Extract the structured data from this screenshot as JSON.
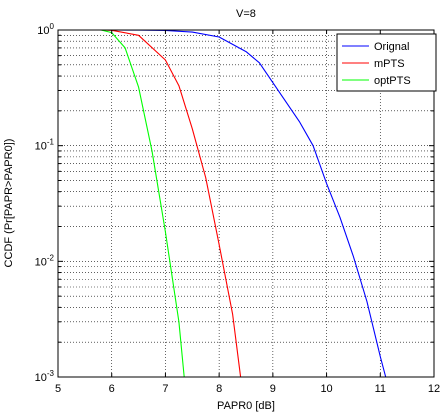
{
  "chart_data": {
    "type": "line",
    "title": "V=8",
    "xlabel": "PAPR0 [dB]",
    "ylabel": "CCDF (Pr[PAPR>PAPR0])",
    "xlim": [
      5,
      12
    ],
    "ylim": [
      0.001,
      1
    ],
    "yscale": "log",
    "x_ticks": [
      "5",
      "6",
      "7",
      "8",
      "9",
      "10",
      "11",
      "12"
    ],
    "y_ticks": [
      {
        "base": "10",
        "exp": "0"
      },
      {
        "base": "10",
        "exp": "-1"
      },
      {
        "base": "10",
        "exp": "-2"
      },
      {
        "base": "10",
        "exp": "-3"
      }
    ],
    "grid": true,
    "legend_position": "top-right",
    "series": [
      {
        "name": "Orignal",
        "color": "#0000ff",
        "points": [
          [
            5.0,
            1
          ],
          [
            6.0,
            1
          ],
          [
            6.5,
            0.998
          ],
          [
            7.0,
            0.99
          ],
          [
            7.5,
            0.96
          ],
          [
            8.0,
            0.87
          ],
          [
            8.5,
            0.65
          ],
          [
            8.75,
            0.52
          ],
          [
            9.0,
            0.35
          ],
          [
            9.5,
            0.16
          ],
          [
            9.75,
            0.1
          ],
          [
            10.0,
            0.047
          ],
          [
            10.25,
            0.024
          ],
          [
            10.5,
            0.011
          ],
          [
            10.75,
            0.0045
          ],
          [
            11.0,
            0.0015
          ],
          [
            11.1,
            0.001
          ]
        ]
      },
      {
        "name": "mPTS",
        "color": "#ff0000",
        "points": [
          [
            5.0,
            1
          ],
          [
            5.8,
            1
          ],
          [
            6.0,
            0.995
          ],
          [
            6.5,
            0.9
          ],
          [
            7.0,
            0.55
          ],
          [
            7.25,
            0.33
          ],
          [
            7.5,
            0.14
          ],
          [
            7.75,
            0.053
          ],
          [
            8.0,
            0.014
          ],
          [
            8.25,
            0.0035
          ],
          [
            8.4,
            0.001
          ]
        ]
      },
      {
        "name": "optPTS",
        "color": "#00ff00",
        "points": [
          [
            5.0,
            1
          ],
          [
            5.8,
            1
          ],
          [
            6.0,
            0.95
          ],
          [
            6.25,
            0.7
          ],
          [
            6.5,
            0.32
          ],
          [
            6.75,
            0.09
          ],
          [
            7.0,
            0.018
          ],
          [
            7.25,
            0.003
          ],
          [
            7.35,
            0.001
          ]
        ]
      }
    ]
  }
}
